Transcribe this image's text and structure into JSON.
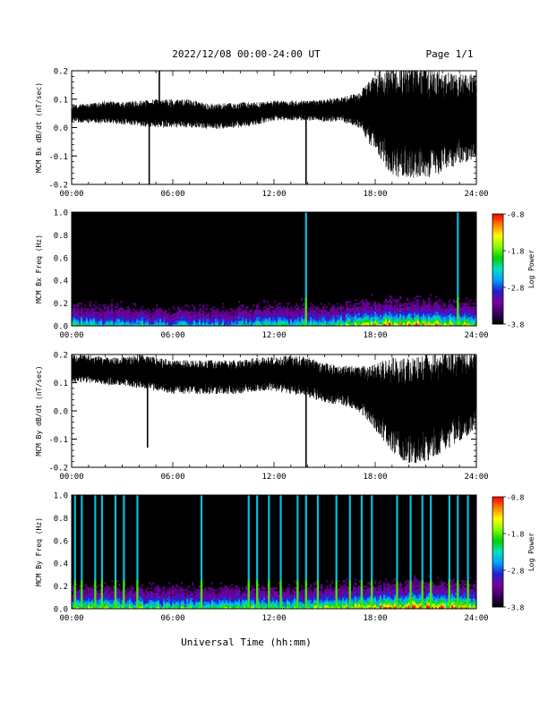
{
  "header": {
    "title": "2022/12/08  00:00-24:00 UT",
    "page": "Page 1/1"
  },
  "footer": {
    "xlabel": "Universal Time (hh:mm)"
  },
  "colors": {
    "trace": "#000000",
    "spectrogram_background": "#000000",
    "colormap": [
      "#000000",
      "#3a0060",
      "#7a00a0",
      "#2020d0",
      "#00a0ff",
      "#00e0c0",
      "#00d000",
      "#80ff00",
      "#ffff00",
      "#ff8000",
      "#ff0000"
    ]
  },
  "chart_data": [
    {
      "type": "line",
      "title": "",
      "ylabel": "MCM Bx dB/dt (nT/sec)",
      "xlabel": "",
      "x_ticklabels": [
        "00:00",
        "06:00",
        "12:00",
        "18:00",
        "24:00"
      ],
      "x_range_hours": [
        0,
        24
      ],
      "y_ticklabels": [
        "0.2",
        "0.1",
        "0.0",
        "-0.1",
        "-0.2"
      ],
      "ylim": [
        -0.2,
        0.2
      ],
      "series": [
        {
          "x_hours": [
            0,
            1,
            2,
            3,
            4,
            5,
            6,
            7,
            8,
            9,
            10,
            11,
            12,
            13,
            14,
            15,
            16,
            17,
            18,
            19,
            20,
            21,
            22,
            23,
            24
          ],
          "center": [
            0.05,
            0.05,
            0.055,
            0.05,
            0.05,
            0.05,
            0.05,
            0.05,
            0.04,
            0.04,
            0.045,
            0.05,
            0.06,
            0.06,
            0.06,
            0.06,
            0.065,
            0.06,
            0.05,
            0.03,
            0.02,
            0.02,
            0.02,
            0.03,
            0.04
          ],
          "spread": [
            0.03,
            0.035,
            0.04,
            0.04,
            0.045,
            0.05,
            0.05,
            0.05,
            0.045,
            0.045,
            0.045,
            0.04,
            0.035,
            0.035,
            0.035,
            0.04,
            0.045,
            0.06,
            0.14,
            0.2,
            0.2,
            0.2,
            0.18,
            0.16,
            0.15
          ]
        }
      ],
      "spikes": [
        {
          "x_hours": 4.6,
          "y": -0.2
        },
        {
          "x_hours": 5.2,
          "y": 0.2
        },
        {
          "x_hours": 13.9,
          "y": -0.2
        }
      ]
    },
    {
      "type": "heatmap",
      "title": "",
      "ylabel": "MCM Bx Freq (Hz)",
      "xlabel": "",
      "x_ticklabels": [
        "00:00",
        "06:00",
        "12:00",
        "18:00",
        "24:00"
      ],
      "x_range_hours": [
        0,
        24
      ],
      "y_ticklabels": [
        "1.0",
        "0.8",
        "0.6",
        "0.4",
        "0.2",
        "0.0"
      ],
      "ylim": [
        0,
        1.0
      ],
      "colorbar": {
        "label": "Log Power",
        "ticklabels": [
          "-0.8",
          "-1.8",
          "-2.8",
          "-3.8"
        ],
        "range": [
          -3.8,
          -0.8
        ]
      },
      "noise_activity_by_hour": [
        0.6,
        0.5,
        0.5,
        0.5,
        0.5,
        0.45,
        0.45,
        0.45,
        0.45,
        0.45,
        0.5,
        0.55,
        0.55,
        0.55,
        0.55,
        0.6,
        0.65,
        0.7,
        0.8,
        0.85,
        0.85,
        0.85,
        0.8,
        0.8,
        0.75
      ],
      "broadband_bursts_hours": [
        13.9,
        22.9
      ],
      "seed": 11
    },
    {
      "type": "line",
      "title": "",
      "ylabel": "MCM By dB/dt (nT/sec)",
      "xlabel": "",
      "x_ticklabels": [
        "00:00",
        "06:00",
        "12:00",
        "18:00",
        "24:00"
      ],
      "x_range_hours": [
        0,
        24
      ],
      "y_ticklabels": [
        "0.2",
        "0.1",
        "0.0",
        "-0.1",
        "-0.2"
      ],
      "ylim": [
        -0.2,
        0.2
      ],
      "series": [
        {
          "x_hours": [
            0,
            1,
            2,
            3,
            4,
            5,
            6,
            7,
            8,
            9,
            10,
            11,
            12,
            13,
            14,
            15,
            16,
            17,
            18,
            19,
            20,
            21,
            22,
            23,
            24
          ],
          "center": [
            0.15,
            0.15,
            0.14,
            0.14,
            0.14,
            0.13,
            0.12,
            0.12,
            0.12,
            0.12,
            0.12,
            0.13,
            0.13,
            0.13,
            0.12,
            0.1,
            0.09,
            0.08,
            0.05,
            0.02,
            0.0,
            0.01,
            0.03,
            0.05,
            0.07
          ],
          "spread": [
            0.05,
            0.05,
            0.05,
            0.05,
            0.06,
            0.06,
            0.06,
            0.06,
            0.06,
            0.06,
            0.06,
            0.06,
            0.06,
            0.07,
            0.07,
            0.07,
            0.07,
            0.08,
            0.12,
            0.17,
            0.19,
            0.19,
            0.18,
            0.16,
            0.14
          ]
        }
      ],
      "spikes": [
        {
          "x_hours": 4.5,
          "y": -0.13
        },
        {
          "x_hours": 13.9,
          "y": -0.2
        }
      ]
    },
    {
      "type": "heatmap",
      "title": "",
      "ylabel": "MCM By Freq (Hz)",
      "xlabel": "",
      "x_ticklabels": [
        "00:00",
        "06:00",
        "12:00",
        "18:00",
        "24:00"
      ],
      "x_range_hours": [
        0,
        24
      ],
      "y_ticklabels": [
        "1.0",
        "0.8",
        "0.6",
        "0.4",
        "0.2",
        "0.0"
      ],
      "ylim": [
        0,
        1.0
      ],
      "colorbar": {
        "label": "Log Power",
        "ticklabels": [
          "-0.8",
          "-1.8",
          "-2.8",
          "-3.8"
        ],
        "range": [
          -3.8,
          -0.8
        ]
      },
      "noise_activity_by_hour": [
        0.7,
        0.7,
        0.65,
        0.65,
        0.65,
        0.6,
        0.6,
        0.6,
        0.6,
        0.6,
        0.6,
        0.6,
        0.65,
        0.65,
        0.65,
        0.7,
        0.75,
        0.8,
        0.85,
        0.9,
        0.95,
        0.95,
        0.9,
        0.9,
        0.85
      ],
      "broadband_bursts_hours": [
        0.2,
        0.6,
        1.4,
        1.8,
        2.6,
        3.1,
        3.9,
        7.7,
        10.5,
        11.0,
        11.7,
        12.4,
        13.4,
        13.9,
        14.6,
        15.7,
        16.5,
        17.2,
        17.8,
        19.3,
        20.1,
        20.8,
        21.3,
        22.4,
        22.9,
        23.5
      ],
      "seed": 29
    }
  ]
}
